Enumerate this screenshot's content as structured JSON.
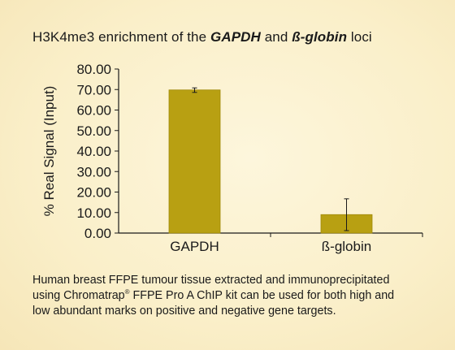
{
  "title": {
    "part1": "H3K4me3 enrichment of the ",
    "part2": "GAPDH",
    "part3": " and ",
    "part4": "ß-globin",
    "part5": " loci"
  },
  "caption": {
    "line1": "Human breast FFPE tumour tissue extracted and immunoprecipitated",
    "line2a": "using Chromatrap",
    "line2sup": "®",
    "line2b": " FFPE Pro A ChIP kit can be used for both high and",
    "line3": "low abundant marks on positive and negative gene targets."
  },
  "colors": {
    "bar": "#b8a012",
    "bar_edge": "#a08a0a",
    "axis": "#1a1a1a",
    "background": "#faefc9"
  },
  "chart_data": {
    "type": "bar",
    "categories": [
      "GAPDH",
      "ß-globin"
    ],
    "values": [
      69.8,
      9.0
    ],
    "error_low": [
      68.6,
      1.2
    ],
    "error_high": [
      70.8,
      16.7
    ],
    "ylabel": "% Real Signal (Input)",
    "ylim": [
      0,
      80
    ],
    "yticks": [
      "0.00",
      "10.00",
      "20.00",
      "30.00",
      "40.00",
      "50.00",
      "60.00",
      "70.00",
      "80.00"
    ],
    "grid": false,
    "legend": "none"
  }
}
